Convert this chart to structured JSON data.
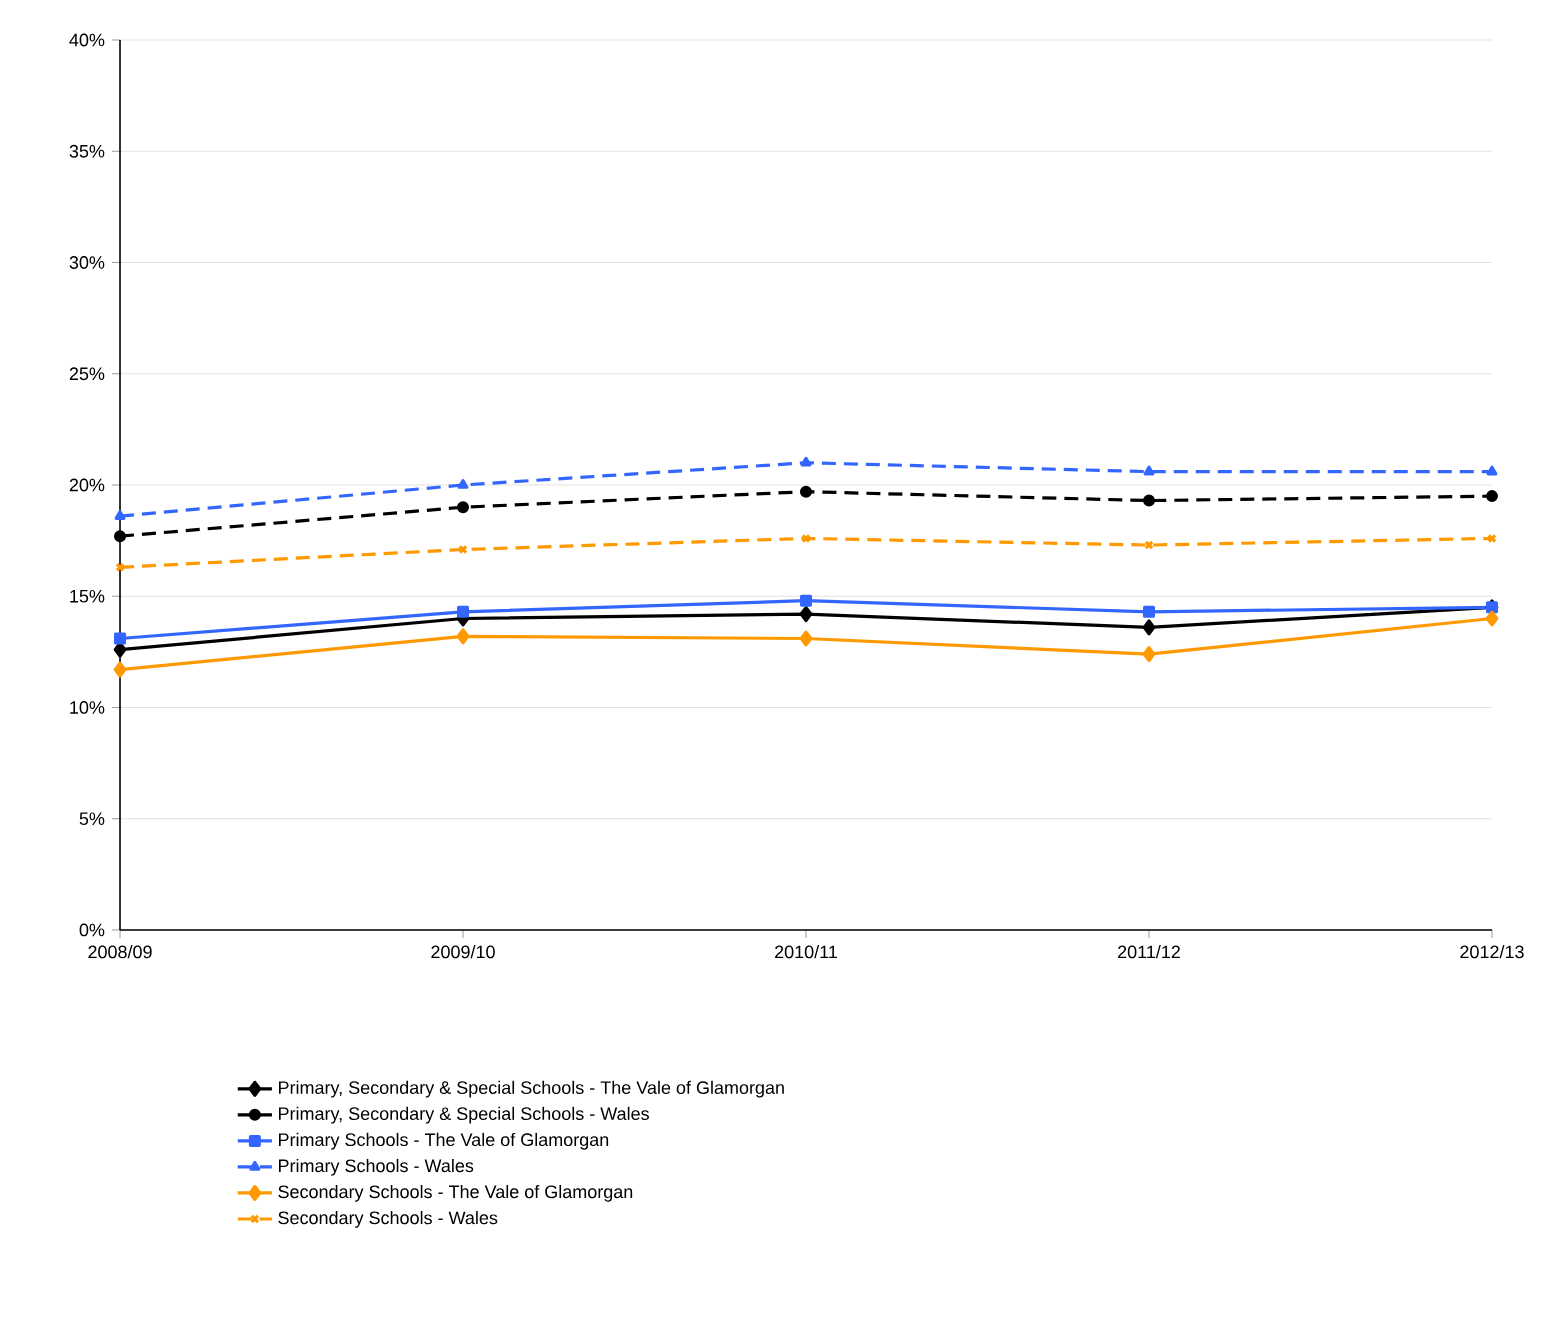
{
  "chart_data": {
    "type": "line",
    "categories": [
      "2008/09",
      "2009/10",
      "2010/11",
      "2011/12",
      "2012/13"
    ],
    "ylim": [
      0,
      40
    ],
    "yticks": [
      {
        "value": 0,
        "label": "0%"
      },
      {
        "value": 5,
        "label": "5%"
      },
      {
        "value": 10,
        "label": "10%"
      },
      {
        "value": 15,
        "label": "15%"
      },
      {
        "value": 20,
        "label": "20%"
      },
      {
        "value": 25,
        "label": "25%"
      },
      {
        "value": 30,
        "label": "30%"
      },
      {
        "value": 35,
        "label": "35%"
      },
      {
        "value": 40,
        "label": "40%"
      }
    ],
    "grid": "y",
    "legend": "bottom",
    "series": [
      {
        "name": "Primary, Secondary & Special Schools - The Vale of Glamorgan",
        "color": "#000000",
        "marker": "diamond",
        "line_style": "solid",
        "values": [
          12.6,
          14.0,
          14.2,
          13.6,
          14.5
        ]
      },
      {
        "name": "Primary, Secondary & Special Schools - Wales",
        "color": "#000000",
        "marker": "circle",
        "line_style": "dashed",
        "values": [
          17.7,
          19.0,
          19.7,
          19.3,
          19.5
        ]
      },
      {
        "name": "Primary Schools - The Vale of Glamorgan",
        "color": "#3366ff",
        "marker": "square",
        "line_style": "solid",
        "values": [
          13.1,
          14.3,
          14.8,
          14.3,
          14.5
        ]
      },
      {
        "name": "Primary Schools - Wales",
        "color": "#3366ff",
        "marker": "triangle",
        "line_style": "dashed",
        "values": [
          18.6,
          20.0,
          21.0,
          20.6,
          20.6
        ]
      },
      {
        "name": "Secondary Schools - The Vale of Glamorgan",
        "color": "#ff9900",
        "marker": "diamond",
        "line_style": "solid",
        "values": [
          11.7,
          13.2,
          13.1,
          12.4,
          14.0
        ]
      },
      {
        "name": "Secondary Schools - Wales",
        "color": "#ff9900",
        "marker": "cross",
        "line_style": "dashed",
        "values": [
          16.3,
          17.1,
          17.6,
          17.3,
          17.6
        ]
      }
    ]
  }
}
